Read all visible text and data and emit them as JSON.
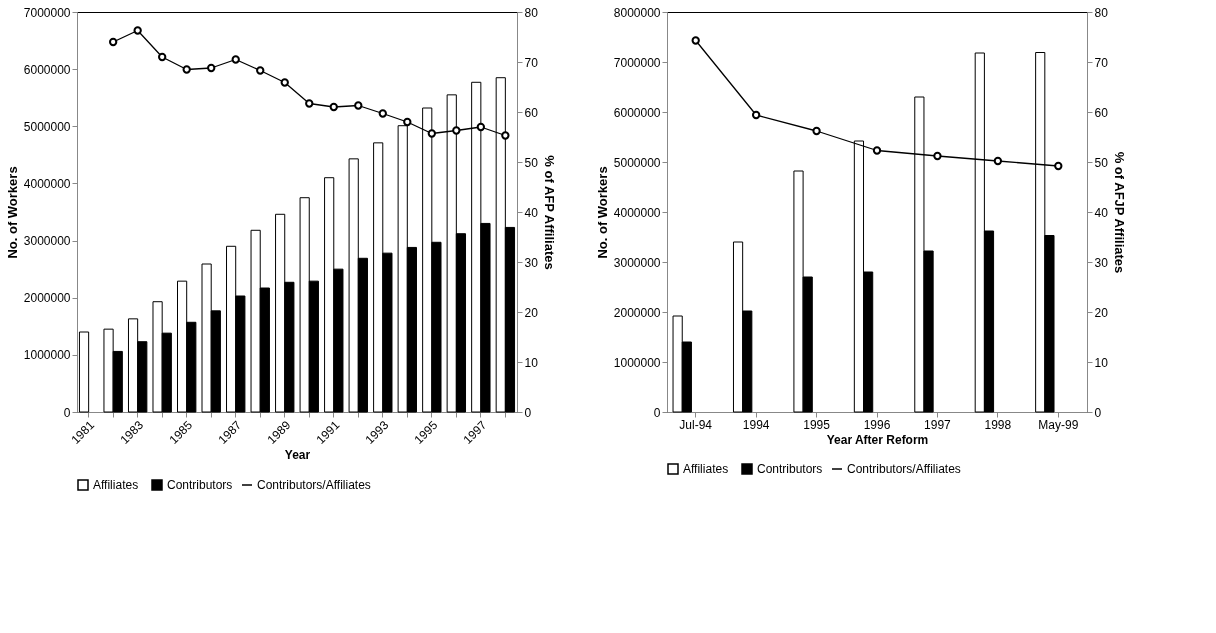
{
  "chart_data": [
    {
      "type": "bar",
      "categories": [
        "1981",
        null,
        "1983",
        null,
        "1985",
        null,
        "1987",
        null,
        "1989",
        null,
        "1991",
        null,
        "1993",
        null,
        "1995",
        null,
        "1997",
        null
      ],
      "series": [
        {
          "name": "Affiliates",
          "color": "#ffffff",
          "values": [
            1400000,
            1450000,
            1630000,
            1930000,
            2290000,
            2590000,
            2900000,
            3180000,
            3460000,
            3750000,
            4100000,
            4430000,
            4710000,
            5010000,
            5320000,
            5550000,
            5770000,
            5850000
          ]
        },
        {
          "name": "Contributors",
          "color": "#000000",
          "values": [
            null,
            1060000,
            1230000,
            1380000,
            1570000,
            1770000,
            2030000,
            2170000,
            2270000,
            2290000,
            2500000,
            2690000,
            2780000,
            2880000,
            2970000,
            3120000,
            3300000,
            3230000
          ]
        },
        {
          "name": "Contributors/Affiliates",
          "type": "line",
          "axis": "y2",
          "color": "#000000",
          "values": [
            null,
            74,
            76.3,
            71,
            68.5,
            68.8,
            70.5,
            68.3,
            65.9,
            61.7,
            61,
            61.3,
            59.7,
            58,
            55.7,
            56.3,
            57,
            55.3
          ]
        }
      ],
      "xlabel": "Year",
      "ylabel": "No. of Workers",
      "y2label": "% of AFP Affiliates",
      "ylim": [
        0,
        7000000
      ],
      "yticks": [
        0,
        1000000,
        2000000,
        3000000,
        4000000,
        5000000,
        6000000,
        7000000
      ],
      "y2lim": [
        0,
        80
      ],
      "y2ticks": [
        0,
        10,
        20,
        30,
        40,
        50,
        60,
        70,
        80
      ],
      "legend": "bottom",
      "marker": "circle"
    },
    {
      "type": "bar",
      "categories": [
        "Jul-94",
        "1994",
        "1995",
        "1996",
        "1997",
        "1998",
        "May-99"
      ],
      "series": [
        {
          "name": "Affiliates",
          "color": "#ffffff",
          "values": [
            1920000,
            3400000,
            4820000,
            5420000,
            6300000,
            7180000,
            7190000
          ]
        },
        {
          "name": "Contributors",
          "color": "#000000",
          "values": [
            1400000,
            2020000,
            2700000,
            2800000,
            3220000,
            3620000,
            3530000
          ]
        },
        {
          "name": "Contributors/Affiliates",
          "type": "line",
          "axis": "y2",
          "color": "#000000",
          "values": [
            74.3,
            59.4,
            56.2,
            52.3,
            51.2,
            50.2,
            49.2
          ]
        }
      ],
      "xlabel": "Year After Reform",
      "ylabel": "No. of Workers",
      "y2label": "% of AFJP Affiliates",
      "ylim": [
        0,
        8000000
      ],
      "yticks": [
        0,
        1000000,
        2000000,
        3000000,
        4000000,
        5000000,
        6000000,
        7000000,
        8000000
      ],
      "y2lim": [
        0,
        80
      ],
      "y2ticks": [
        0,
        10,
        20,
        30,
        40,
        50,
        60,
        70,
        80
      ],
      "legend": "bottom",
      "marker": "circle"
    }
  ]
}
